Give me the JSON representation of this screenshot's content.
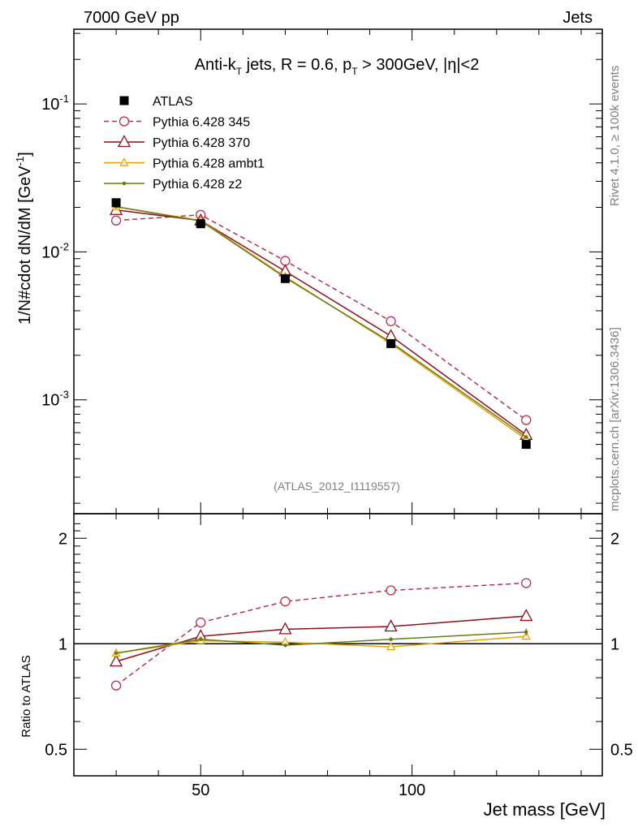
{
  "header": {
    "left": "7000 GeV pp",
    "right": "Jets"
  },
  "title_parts": {
    "a": "Anti-k",
    "a_sub": "T",
    "b": " jets, R = 0.6, p",
    "b_sub": "T",
    "c": " > 300GeV, |η|<2"
  },
  "side_labels": {
    "rivet": "Rivet 4.1.0, ≥ 100k events",
    "source": "mcplots.cern.ch [arXiv:1306.3436]"
  },
  "analysis_id": "(ATLAS_2012_I1119557)",
  "colors": {
    "atlas": "#000000",
    "p345": "#b0344d",
    "p370": "#8b0f1e",
    "ambt1": "#e6a100",
    "z2": "#6b7a12"
  },
  "chart_data": [
    {
      "type": "line",
      "scale": "log",
      "ylabel_main": "1/N#cdot dN/dM [GeV",
      "ylabel_sup": "-1",
      "ylabel_end": "]",
      "xlim": [
        20,
        145
      ],
      "ylim": [
        0.00017,
        0.32
      ],
      "y_ticks": [
        {
          "value": 0.1,
          "base": "10",
          "exp": "-1"
        },
        {
          "value": 0.01,
          "base": "10",
          "exp": "-2"
        },
        {
          "value": 0.001,
          "base": "10",
          "exp": "-3"
        }
      ],
      "x": [
        30,
        50,
        70,
        95,
        127
      ],
      "series": [
        {
          "name": "ATLAS",
          "style": "data",
          "values": [
            0.0215,
            0.0155,
            0.0066,
            0.0024,
            0.0005
          ]
        },
        {
          "name": "Pythia 6.428 345",
          "style": "circle-dashed",
          "values": [
            0.0163,
            0.0178,
            0.0087,
            0.0034,
            0.00073
          ]
        },
        {
          "name": "Pythia 6.428 370",
          "style": "triangle",
          "values": [
            0.0192,
            0.0163,
            0.0074,
            0.0027,
            0.00058
          ]
        },
        {
          "name": "Pythia 6.428 ambt1",
          "style": "triangle-small",
          "values": [
            0.0202,
            0.0163,
            0.0068,
            0.0024,
            0.00054
          ]
        },
        {
          "name": "Pythia 6.428 z2",
          "style": "dot",
          "values": [
            0.0202,
            0.0162,
            0.0067,
            0.00245,
            0.00056
          ]
        }
      ]
    },
    {
      "type": "line",
      "scale": "log",
      "ylabel": "Ratio to ATLAS",
      "xlabel": "Jet mass [GeV]",
      "xlim": [
        20,
        145
      ],
      "ylim": [
        0.42,
        2.35
      ],
      "y_ticks": [
        0.5,
        1,
        2
      ],
      "y_tick_labels": [
        "0.5",
        "1",
        "2"
      ],
      "x_ticks": [
        50,
        100
      ],
      "x_tick_labels": [
        "50",
        "100"
      ],
      "x": [
        30,
        50,
        70,
        95,
        127
      ],
      "series": [
        {
          "name": "Pythia 6.428 345",
          "values": [
            0.76,
            1.15,
            1.32,
            1.42,
            1.49
          ]
        },
        {
          "name": "Pythia 6.428 370",
          "values": [
            0.89,
            1.05,
            1.1,
            1.12,
            1.2
          ]
        },
        {
          "name": "Pythia 6.428 ambt1",
          "values": [
            0.94,
            1.02,
            1.01,
            0.98,
            1.05
          ]
        },
        {
          "name": "Pythia 6.428 z2",
          "values": [
            0.94,
            1.03,
            0.99,
            1.03,
            1.08
          ]
        }
      ],
      "errors_last": [
        0.03,
        0.03,
        0.025,
        0.025
      ]
    }
  ]
}
